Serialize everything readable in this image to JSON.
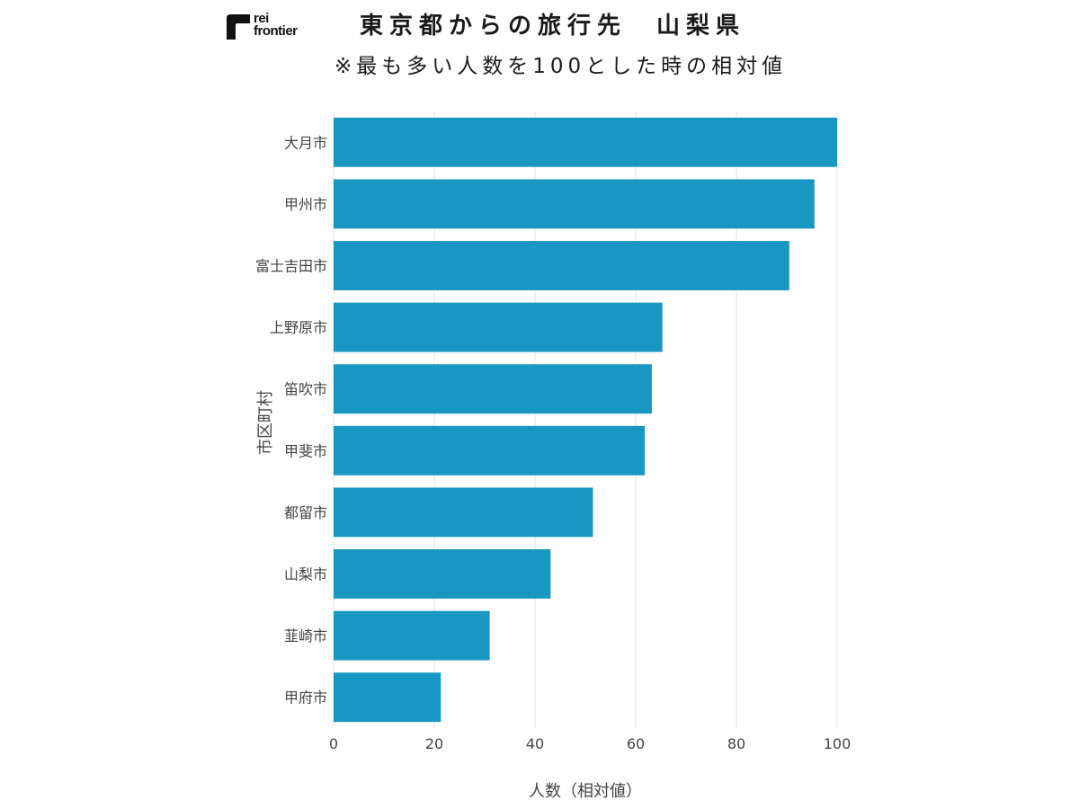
{
  "logo": {
    "line1": "rei",
    "line2": "frontier"
  },
  "chart_data": {
    "type": "bar",
    "orientation": "horizontal",
    "title": "東京都からの旅行先　山梨県",
    "subtitle": "※最も多い人数を100とした時の相対値",
    "xlabel": "人数（相対値）",
    "ylabel": "市区町村",
    "xlim": [
      0,
      100
    ],
    "xticks": [
      0,
      20,
      40,
      60,
      80,
      100
    ],
    "grid": "vertical",
    "bar_color": "#1897c3",
    "categories": [
      "大月市",
      "甲州市",
      "富士吉田市",
      "上野原市",
      "笛吹市",
      "甲斐市",
      "都留市",
      "山梨市",
      "韮崎市",
      "甲府市"
    ],
    "values": [
      100,
      95.5,
      90.5,
      65.3,
      63.2,
      61.8,
      51.5,
      43.1,
      31.0,
      21.3
    ]
  }
}
